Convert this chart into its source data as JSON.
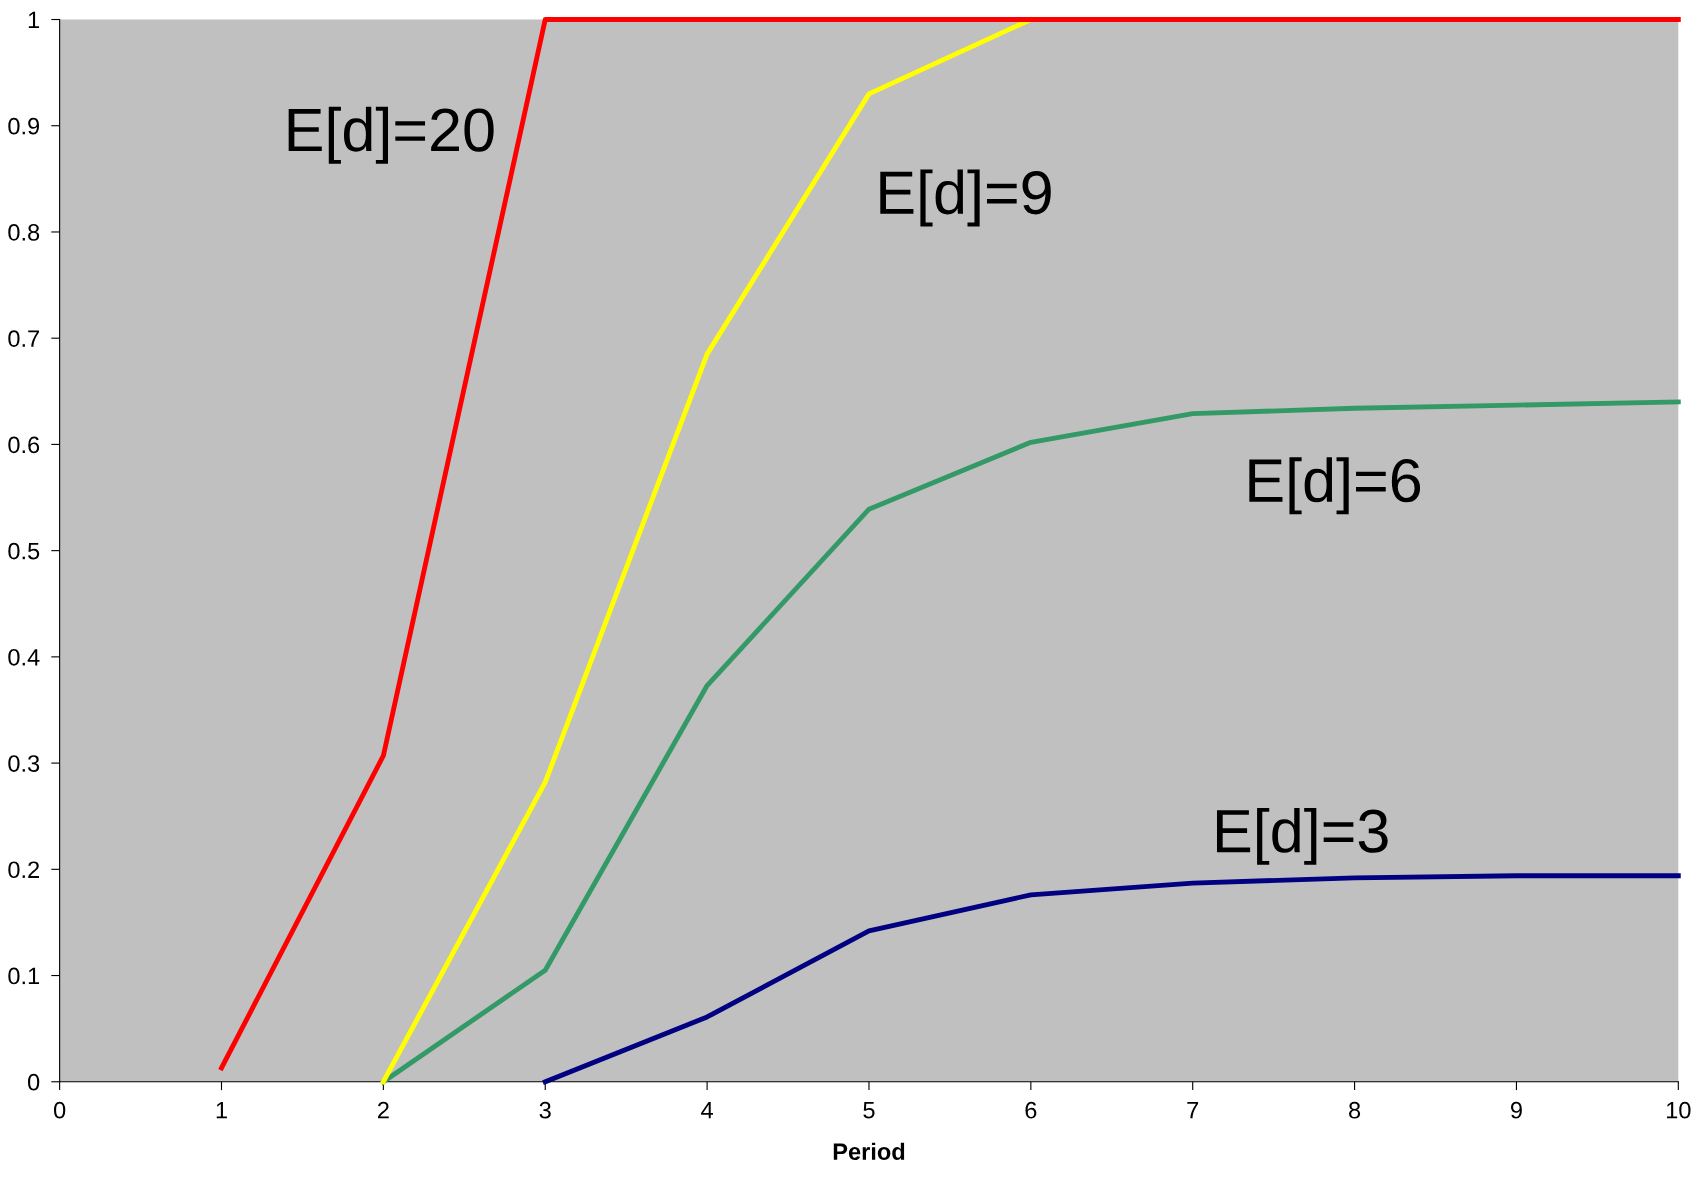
{
  "chart_data": {
    "type": "line",
    "xlabel": "Period",
    "xlim": [
      0,
      10
    ],
    "ylim": [
      0,
      1
    ],
    "xticks": [
      0,
      1,
      2,
      3,
      4,
      5,
      6,
      7,
      8,
      9,
      10
    ],
    "yticks": [
      0,
      {
        "value": 0.1,
        "label": "0.1"
      },
      {
        "value": 0.2,
        "label": "0.2"
      },
      {
        "value": 0.3,
        "label": "0.3"
      },
      {
        "value": 0.4,
        "label": "0.4"
      },
      {
        "value": 0.5,
        "label": "0.5"
      },
      {
        "value": 0.6,
        "label": "0.6"
      },
      {
        "value": 0.7,
        "label": "0.7"
      },
      {
        "value": 0.8,
        "label": "0.8"
      },
      {
        "value": 0.9,
        "label": "0.9"
      },
      1
    ],
    "grid": false,
    "legend": false,
    "marker": "none",
    "line_style": "solid",
    "series": [
      {
        "name": "E[d]=3",
        "color": "#000080",
        "x": [
          3,
          4,
          5,
          6,
          7,
          8,
          9,
          10
        ],
        "values": [
          0,
          0.061,
          0.142,
          0.176,
          0.187,
          0.192,
          0.194,
          0.194
        ]
      },
      {
        "name": "E[d]=6",
        "color": "#339966",
        "x": [
          2,
          3,
          4,
          5,
          6,
          7,
          8,
          9,
          10
        ],
        "values": [
          0,
          0.105,
          0.373,
          0.539,
          0.602,
          0.629,
          0.634,
          0.637,
          0.64
        ]
      },
      {
        "name": "E[d]=9",
        "color": "#ffff00",
        "x": [
          2,
          3,
          4,
          5,
          6
        ],
        "values": [
          0,
          0.282,
          0.685,
          0.93,
          1
        ]
      },
      {
        "name": "E[d]=20",
        "color": "#ff0000",
        "x": [
          1,
          2,
          3,
          4,
          5,
          6,
          7,
          8,
          9,
          10
        ],
        "values": [
          0.013,
          0.307,
          1,
          1,
          1,
          1,
          1,
          1,
          1,
          1
        ]
      }
    ]
  }
}
